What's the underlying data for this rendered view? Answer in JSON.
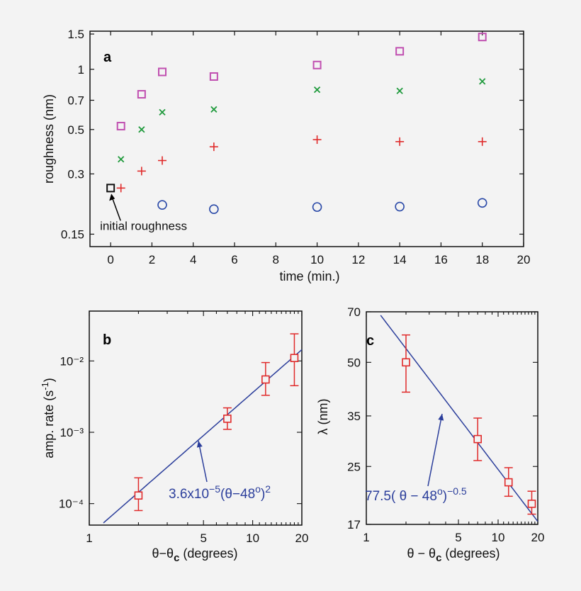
{
  "chart_data": [
    {
      "panel_label": "a",
      "type": "scatter",
      "xlabel": "time (min.)",
      "ylabel": "roughness (nm)",
      "xlim": [
        -1,
        20
      ],
      "ylim": [
        0.13,
        1.55
      ],
      "yscale": "log",
      "xticks": [
        0,
        2,
        4,
        6,
        8,
        10,
        12,
        14,
        16,
        18,
        20
      ],
      "yticks": [
        0.15,
        0.3,
        0.5,
        0.7,
        1,
        1.5
      ],
      "ytick_labels": [
        "0.15",
        "0.3",
        "0.5",
        "0.7",
        "1",
        "1.5"
      ],
      "series": [
        {
          "marker": "square",
          "color": "#c04fb0",
          "x": [
            0.5,
            1.5,
            2.5,
            5,
            10,
            14,
            18
          ],
          "y": [
            0.52,
            0.75,
            0.97,
            0.92,
            1.05,
            1.23,
            1.45
          ]
        },
        {
          "marker": "x",
          "color": "#1f9a3c",
          "x": [
            0.5,
            1.5,
            2.5,
            5,
            10,
            14,
            18
          ],
          "y": [
            0.355,
            0.5,
            0.61,
            0.63,
            0.79,
            0.78,
            0.87
          ]
        },
        {
          "marker": "plus",
          "color": "#e02a2a",
          "x": [
            0.5,
            1.5,
            2.5,
            5,
            10,
            14,
            18
          ],
          "y": [
            0.255,
            0.31,
            0.35,
            0.41,
            0.445,
            0.435,
            0.435
          ]
        },
        {
          "marker": "circle",
          "color": "#2b4aa8",
          "x": [
            2.5,
            5,
            10,
            14,
            18
          ],
          "y": [
            0.21,
            0.2,
            0.205,
            0.206,
            0.215
          ]
        },
        {
          "marker": "square",
          "color": "#111111",
          "x": [
            0
          ],
          "y": [
            0.255
          ]
        }
      ],
      "annotation": {
        "text": "initial roughness",
        "x": 0,
        "y": 0.255
      }
    },
    {
      "panel_label": "b",
      "type": "scatter",
      "xlabel": "θ−θc (degrees)",
      "ylabel": "amp. rate (s⁻¹)",
      "xscale": "log",
      "yscale": "log",
      "xlim": [
        1,
        20
      ],
      "ylim": [
        5e-05,
        0.05
      ],
      "xticks": [
        1,
        5,
        10,
        20
      ],
      "xtick_labels": [
        "1",
        "5",
        "10",
        "20"
      ],
      "yticks": [
        0.0001,
        0.001,
        0.01
      ],
      "ytick_labels": [
        "10⁻⁴",
        "10⁻³",
        "10⁻²"
      ],
      "points": {
        "x": [
          2,
          7,
          12,
          18
        ],
        "y": [
          0.00013,
          0.00155,
          0.0055,
          0.011
        ],
        "err_low": [
          8e-05,
          0.0011,
          0.0033,
          0.0045
        ],
        "err_high": [
          0.00023,
          0.0022,
          0.0095,
          0.024
        ],
        "color": "#e02a2a"
      },
      "fit": {
        "coef": 3.6e-05,
        "exponent": 2,
        "color": "#2b3e9b",
        "label": "3.6x10⁻⁵(θ−48º)²"
      }
    },
    {
      "panel_label": "c",
      "type": "scatter",
      "xlabel": "θ− θc (degrees)",
      "ylabel": "λ (nm)",
      "xscale": "log",
      "yscale": "log",
      "xlim": [
        1,
        20
      ],
      "ylim": [
        17,
        70
      ],
      "xticks": [
        1,
        5,
        10,
        20
      ],
      "xtick_labels": [
        "1",
        "5",
        "10",
        "20"
      ],
      "yticks": [
        17,
        25,
        35,
        50,
        70
      ],
      "ytick_labels": [
        "17",
        "25",
        "35",
        "50",
        "70"
      ],
      "points": {
        "x": [
          2,
          7,
          12,
          18
        ],
        "y": [
          50,
          30,
          22.5,
          19.5
        ],
        "err_low": [
          41,
          26,
          20.5,
          18.2
        ],
        "err_high": [
          60,
          34.5,
          24.8,
          21.2
        ],
        "color": "#e02a2a"
      },
      "fit": {
        "coef": 77.5,
        "exponent": -0.5,
        "color": "#2b3e9b",
        "label": "77.5( θ−48º)⁻⁰·⁵"
      }
    }
  ]
}
